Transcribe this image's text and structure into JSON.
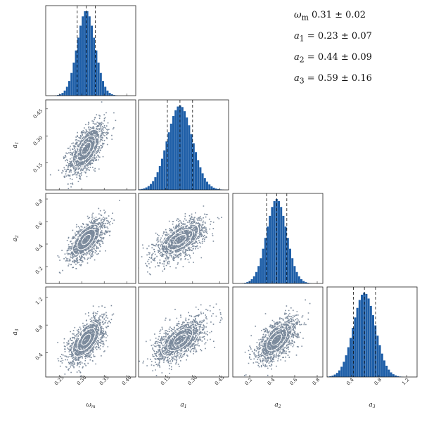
{
  "chart_data": {
    "type": "corner",
    "parameters": [
      {
        "key": "omega_m",
        "label": "ω",
        "sub": "m",
        "range": [
          0.22,
          0.42
        ],
        "ticks": [
          "0.25",
          "0.30",
          "0.35",
          "0.40"
        ],
        "tick_values": [
          0.25,
          0.3,
          0.35,
          0.4
        ],
        "quantiles": [
          0.29,
          0.31,
          0.33
        ],
        "mean": 0.31,
        "sd": 0.02
      },
      {
        "key": "a1",
        "label": "a",
        "sub": "1",
        "range": [
          0.0,
          0.5
        ],
        "ticks": [
          "0.15",
          "0.30",
          "0.45"
        ],
        "tick_values": [
          0.15,
          0.3,
          0.45
        ],
        "quantiles": [
          0.16,
          0.23,
          0.3
        ],
        "mean": 0.23,
        "sd": 0.07
      },
      {
        "key": "a2",
        "label": "a",
        "sub": "2",
        "range": [
          0.05,
          0.85
        ],
        "ticks": [
          "0.2",
          "0.4",
          "0.6",
          "0.8"
        ],
        "tick_values": [
          0.2,
          0.4,
          0.6,
          0.8
        ],
        "quantiles": [
          0.35,
          0.44,
          0.53
        ],
        "mean": 0.44,
        "sd": 0.09
      },
      {
        "key": "a3",
        "label": "a",
        "sub": "3",
        "range": [
          0.05,
          1.35
        ],
        "ticks": [
          "0.4",
          "0.8",
          "1.2"
        ],
        "tick_values": [
          0.4,
          0.8,
          1.2
        ],
        "quantiles": [
          0.43,
          0.59,
          0.75
        ],
        "mean": 0.59,
        "sd": 0.16
      }
    ],
    "x_tick_labels": [
      [
        "0.25",
        "0.30",
        "0.35",
        "0.40"
      ],
      [
        "0.15",
        "0.30",
        "0.45"
      ],
      [
        "0.2",
        "0.4",
        "0.6",
        "0.8"
      ],
      [
        "0.4",
        "0.8",
        "1.2"
      ]
    ],
    "correlation": 0.6,
    "contour_levels_sigma": [
      0.5,
      1.0,
      1.5
    ],
    "colors": {
      "hist_fill": "#1f5fa8",
      "scatter": "#0e2a4a",
      "contour": "#ffffff",
      "frame": "#222222",
      "quantile_line": "#111111"
    }
  },
  "annotations": [
    {
      "sym": "ω",
      "sub": "m",
      "text": "    0.31 ± 0.02"
    },
    {
      "sym": "a",
      "sub": "1",
      "text": " = 0.23 ± 0.07"
    },
    {
      "sym": "a",
      "sub": "2",
      "text": " = 0.44 ± 0.09"
    },
    {
      "sym": "a",
      "sub": "3",
      "text": " = 0.59 ± 0.16"
    }
  ]
}
